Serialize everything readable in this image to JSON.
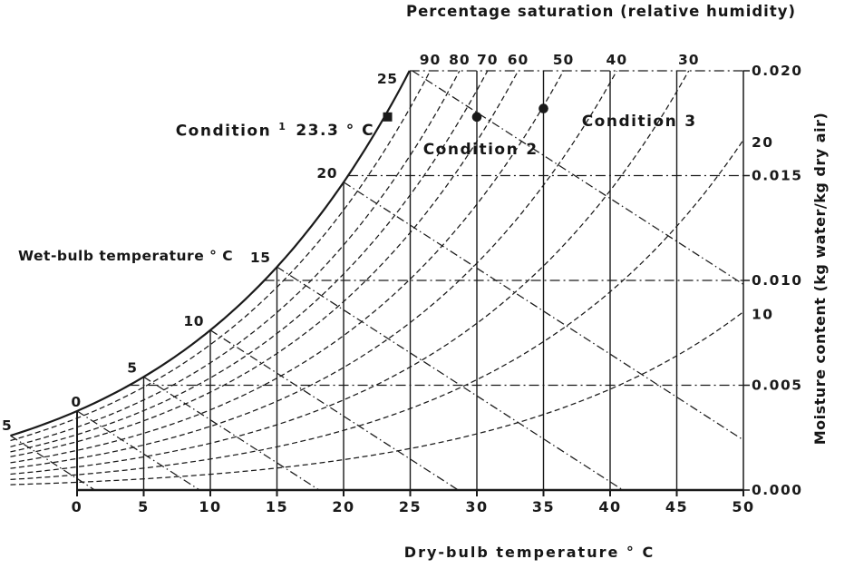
{
  "figure": {
    "title": "Percentage saturation (relative humidity)",
    "x_axis_label": "Dry-bulb temperature ° C",
    "y_axis_label": "Moisture content (kg water/kg dry air)",
    "wet_bulb_label": "Wet-bulb temperature ° C",
    "ink_color": "#1a1a1a",
    "background_color": "#ffffff"
  },
  "chart_data": {
    "type": "line",
    "title": "Percentage saturation (relative humidity)",
    "xlabel": "Dry-bulb temperature ° C",
    "ylabel": "Moisture content (kg water/kg dry air)",
    "x_axis_unit": "°C dry-bulb",
    "x_ticks": [
      0,
      5,
      10,
      15,
      20,
      25,
      30,
      35,
      40,
      45,
      50
    ],
    "x_range_c": [
      -5,
      50
    ],
    "y_ticks": [
      "0.000",
      "0.005",
      "0.010",
      "0.015",
      "0.020"
    ],
    "y_tick_values": [
      0,
      0.005,
      0.01,
      0.015,
      0.02
    ],
    "y_range": [
      0,
      0.02
    ],
    "grid": true,
    "legend": false,
    "saturation_curve_pct": 100,
    "percentage_saturation_curves": [
      {
        "pct": 90,
        "exit": "top",
        "top_exit_dry_bulb_c": 26.5
      },
      {
        "pct": 80,
        "exit": "top",
        "top_exit_dry_bulb_c": 28.7
      },
      {
        "pct": 70,
        "exit": "top",
        "top_exit_dry_bulb_c": 30.8
      },
      {
        "pct": 60,
        "exit": "top",
        "top_exit_dry_bulb_c": 33.1
      },
      {
        "pct": 50,
        "exit": "top",
        "top_exit_dry_bulb_c": 36.5
      },
      {
        "pct": 40,
        "exit": "top",
        "top_exit_dry_bulb_c": 40.5
      },
      {
        "pct": 30,
        "exit": "top",
        "top_exit_dry_bulb_c": 45.9
      },
      {
        "pct": 20,
        "exit": "right",
        "right_exit_moisture": 0.0167
      },
      {
        "pct": 10,
        "exit": "right",
        "right_exit_moisture": 0.0085
      }
    ],
    "wet_bulb_lines_c": [
      -5,
      0,
      5,
      10,
      15,
      20,
      25
    ],
    "wet_bulb_curve_labels": [
      {
        "value": -5,
        "text": "5"
      },
      {
        "value": 0,
        "text": "0"
      },
      {
        "value": 5,
        "text": "5"
      },
      {
        "value": 10,
        "text": "10"
      },
      {
        "value": 15,
        "text": "15"
      },
      {
        "value": 20,
        "text": "20"
      },
      {
        "value": 25,
        "text": "25"
      }
    ],
    "conditions": [
      {
        "name": "Condition",
        "number": "1",
        "value": "23.3 ° C",
        "marker": "square",
        "dry_bulb_c": 23.3,
        "moisture_kg_per_kg": 0.0178
      },
      {
        "name": "Condition",
        "number": "2",
        "value": "",
        "marker": "circle",
        "dry_bulb_c": 30.0,
        "moisture_kg_per_kg": 0.0178
      },
      {
        "name": "Condition",
        "number": "3",
        "value": "",
        "marker": "circle",
        "dry_bulb_c": 35.0,
        "moisture_kg_per_kg": 0.0182
      }
    ]
  }
}
